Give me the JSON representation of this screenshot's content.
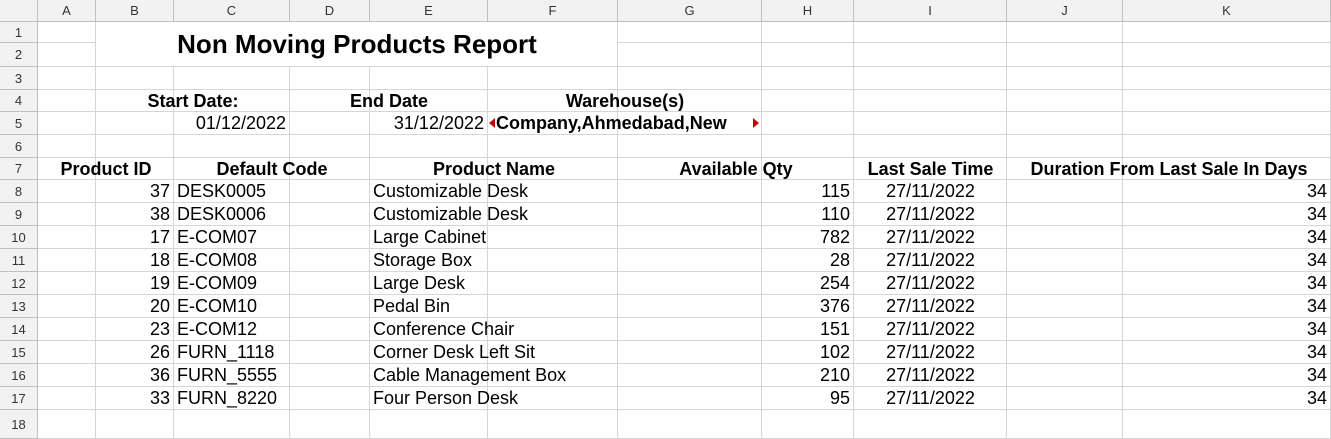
{
  "columns": [
    "A",
    "B",
    "C",
    "D",
    "E",
    "F",
    "G",
    "H",
    "I",
    "J",
    "K"
  ],
  "rows": [
    "1",
    "2",
    "3",
    "4",
    "5",
    "6",
    "7",
    "8",
    "9",
    "10",
    "11",
    "12",
    "13",
    "14",
    "15",
    "16",
    "17",
    "18"
  ],
  "report": {
    "title": "Non Moving Products Report",
    "start_label": "Start Date:",
    "end_label": "End Date",
    "warehouse_label": "Warehouse(s)",
    "start_value": "01/12/2022",
    "end_value": "31/12/2022",
    "warehouse_value": "Company,Ahmedabad,New"
  },
  "table": {
    "headers": [
      "Product ID",
      "Default Code",
      "Product Name",
      "Available Qty",
      "Last Sale Time",
      "Duration From Last Sale In Days"
    ],
    "rows": [
      [
        "37",
        "DESK0005",
        "Customizable Desk",
        "115",
        "27/11/2022",
        "34"
      ],
      [
        "38",
        "DESK0006",
        "Customizable Desk",
        "110",
        "27/11/2022",
        "34"
      ],
      [
        "17",
        "E-COM07",
        "Large Cabinet",
        "782",
        "27/11/2022",
        "34"
      ],
      [
        "18",
        "E-COM08",
        "Storage Box",
        "28",
        "27/11/2022",
        "34"
      ],
      [
        "19",
        "E-COM09",
        "Large Desk",
        "254",
        "27/11/2022",
        "34"
      ],
      [
        "20",
        "E-COM10",
        "Pedal Bin",
        "376",
        "27/11/2022",
        "34"
      ],
      [
        "23",
        "E-COM12",
        "Conference Chair",
        "151",
        "27/11/2022",
        "34"
      ],
      [
        "26",
        "FURN_1118",
        "Corner Desk Left Sit",
        "102",
        "27/11/2022",
        "34"
      ],
      [
        "36",
        "FURN_5555",
        "Cable Management Box",
        "210",
        "27/11/2022",
        "34"
      ],
      [
        "33",
        "FURN_8220",
        "Four Person Desk",
        "95",
        "27/11/2022",
        "34"
      ]
    ]
  }
}
